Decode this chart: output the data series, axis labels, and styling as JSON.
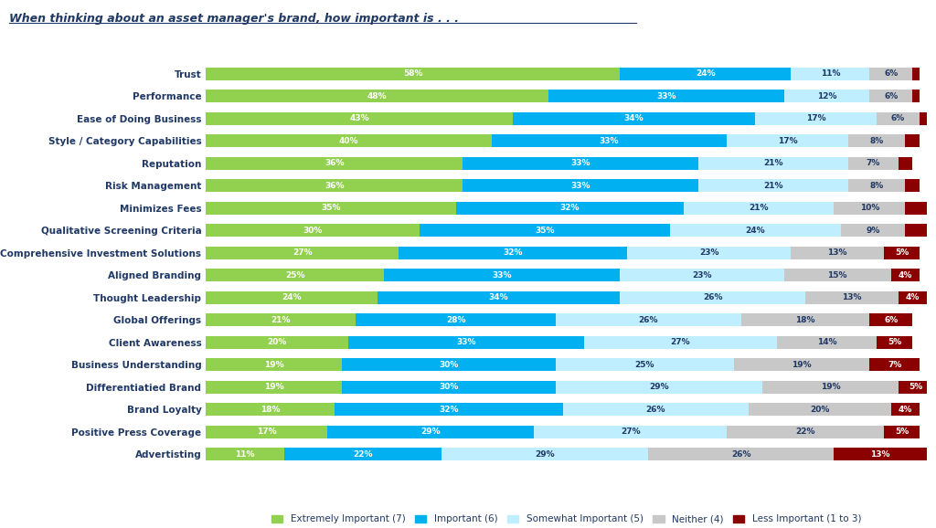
{
  "title": "When thinking about an asset manager's brand, how important is . . .",
  "categories": [
    "Trust",
    "Performance",
    "Ease of Doing Business",
    "Style / Category Capabilities",
    "Reputation",
    "Risk Management",
    "Minimizes Fees",
    "Qualitative Screening Criteria",
    "Comprehensive Investment Solutions",
    "Aligned Branding",
    "Thought Leadership",
    "Global Offerings",
    "Client Awareness",
    "Business Understanding",
    "Differentiatied Brand",
    "Brand Loyalty",
    "Positive Press Coverage",
    "Advertisting"
  ],
  "series": {
    "Extremely Important (7)": [
      58,
      48,
      43,
      40,
      36,
      36,
      35,
      30,
      27,
      25,
      24,
      21,
      20,
      19,
      19,
      18,
      17,
      11
    ],
    "Important (6)": [
      24,
      33,
      34,
      33,
      33,
      33,
      32,
      35,
      32,
      33,
      34,
      28,
      33,
      30,
      30,
      32,
      29,
      22
    ],
    "Somewhat Important (5)": [
      11,
      12,
      17,
      17,
      21,
      21,
      21,
      24,
      23,
      23,
      26,
      26,
      27,
      25,
      29,
      26,
      27,
      29
    ],
    "Neither (4)": [
      6,
      6,
      6,
      8,
      7,
      8,
      10,
      9,
      13,
      15,
      13,
      18,
      14,
      19,
      19,
      20,
      22,
      26
    ],
    "Less Important (1 to 3)": [
      1,
      1,
      2,
      2,
      2,
      2,
      3,
      3,
      5,
      4,
      4,
      6,
      5,
      7,
      5,
      4,
      5,
      13
    ]
  },
  "colors": {
    "Extremely Important (7)": "#92D050",
    "Important (6)": "#00B0F0",
    "Somewhat Important (5)": "#BFEFFF",
    "Neither (4)": "#C8C8C8",
    "Less Important (1 to 3)": "#8B0000"
  },
  "background_color": "#FFFFFF",
  "title_color": "#1F3864",
  "label_color": "#1F3864",
  "figsize": [
    10.24,
    5.78
  ],
  "dpi": 100
}
